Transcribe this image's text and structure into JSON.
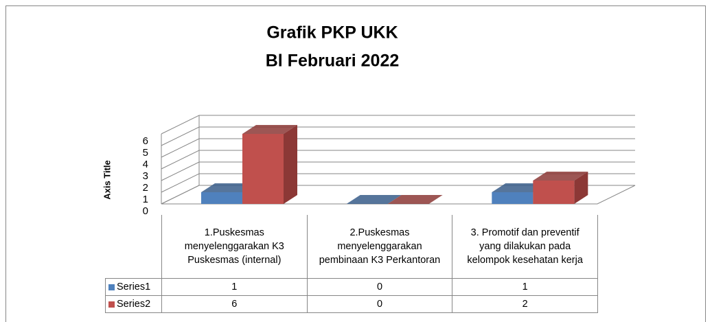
{
  "chart_data": {
    "type": "bar3d",
    "title": "Grafik PKP UKK",
    "subtitle": "Bl Februari 2022",
    "y_axis_label": "Axis Title",
    "categories": [
      "1.Puskesmas menyelenggarakan K3 Puskesmas (internal)",
      "2.Puskesmas menyelenggarakan pembinaan K3 Perkantoran",
      "3. Promotif dan preventif yang dilakukan pada kelompok kesehatan kerja"
    ],
    "series": [
      {
        "name": "Series1",
        "color": "#4f81bd",
        "side": "#385d8a",
        "values": [
          1,
          0,
          1
        ]
      },
      {
        "name": "Series2",
        "color": "#c0504d",
        "side": "#8c3836",
        "values": [
          6,
          0,
          2
        ]
      }
    ],
    "ylim": [
      0,
      6
    ],
    "yticks": [
      0,
      1,
      2,
      3,
      4,
      5,
      6
    ],
    "grid": true
  }
}
